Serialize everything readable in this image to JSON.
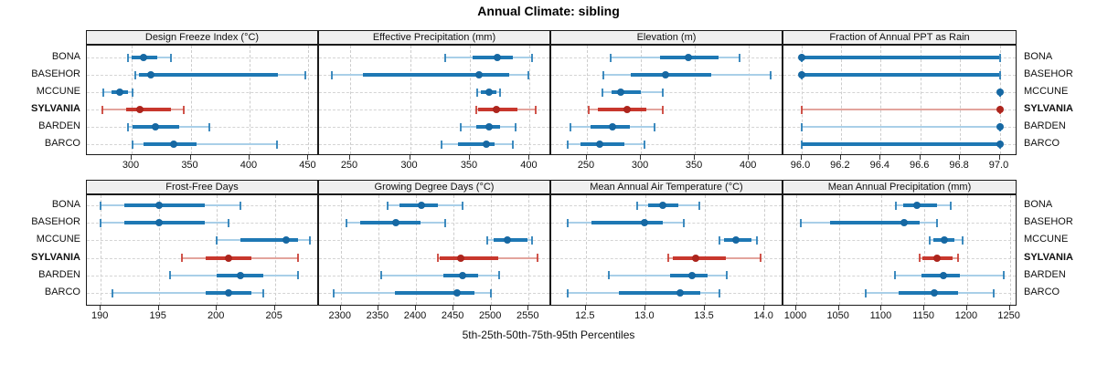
{
  "title": "Annual Climate: sibling",
  "footer": "5th-25th-50th-75th-95th Percentiles",
  "stations": [
    "BONA",
    "BASEHOR",
    "MCCUNE",
    "SYLVANIA",
    "BARDEN",
    "BARCO"
  ],
  "highlight_station": "SYLVANIA",
  "percentile_labels": [
    "5th",
    "25th",
    "50th",
    "75th",
    "95th"
  ],
  "colors": {
    "blue_main": "#1E78B4",
    "blue_light": "#A9CFE8",
    "blue_dot": "#1668A3",
    "red_main": "#C8372D",
    "red_light": "#E3A49D",
    "red_dot": "#AD251D",
    "grid": "#cccccc",
    "panel_border": "#1a1a1a",
    "strip_bg": "#f0f0f0"
  },
  "chart_data": [
    {
      "type": "scatter",
      "subtype": "percentile-interval-dotplot",
      "title": "Design Freeze Index (°C)",
      "row": 0,
      "col": 0,
      "xlim": [
        262,
        459
      ],
      "ticks": [
        300,
        350,
        400,
        450
      ],
      "tick_labels": [
        "300",
        "350",
        "400",
        "450"
      ],
      "grid": true,
      "values": {
        "BONA": [
          297,
          300,
          310,
          322,
          333
        ],
        "BASEHOR": [
          303,
          306,
          316,
          424,
          447
        ],
        "MCCUNE": [
          276,
          283,
          290,
          297,
          301
        ],
        "SYLVANIA": [
          275,
          295,
          307,
          333,
          344
        ],
        "BARDEN": [
          297,
          301,
          320,
          340,
          366
        ],
        "BARCO": [
          301,
          310,
          336,
          355,
          423
        ]
      }
    },
    {
      "type": "scatter",
      "subtype": "percentile-interval-dotplot",
      "title": "Effective Precipitation (mm)",
      "row": 0,
      "col": 1,
      "xlim": [
        224,
        418
      ],
      "ticks": [
        250,
        300,
        350,
        400
      ],
      "tick_labels": [
        "250",
        "300",
        "350",
        "400"
      ],
      "grid": true,
      "values": {
        "BONA": [
          329,
          352,
          373,
          386,
          402
        ],
        "BASEHOR": [
          235,
          261,
          358,
          383,
          399
        ],
        "MCCUNE": [
          356,
          359,
          366,
          372,
          375
        ],
        "SYLVANIA": [
          355,
          357,
          372,
          390,
          405
        ],
        "BARDEN": [
          342,
          355,
          366,
          375,
          388
        ],
        "BARCO": [
          326,
          340,
          364,
          371,
          386
        ]
      }
    },
    {
      "type": "scatter",
      "subtype": "percentile-interval-dotplot",
      "title": "Elevation (m)",
      "row": 0,
      "col": 2,
      "xlim": [
        217,
        432
      ],
      "ticks": [
        250,
        300,
        350,
        400
      ],
      "tick_labels": [
        "250",
        "300",
        "350",
        "400"
      ],
      "grid": true,
      "values": {
        "BONA": [
          272,
          318,
          344,
          372,
          391
        ],
        "BASEHOR": [
          265,
          291,
          323,
          365,
          420
        ],
        "MCCUNE": [
          264,
          273,
          281,
          300,
          320
        ],
        "SYLVANIA": [
          252,
          260,
          287,
          305,
          320
        ],
        "BARDEN": [
          235,
          253,
          274,
          290,
          313
        ],
        "BARCO": [
          232,
          244,
          262,
          285,
          303
        ]
      }
    },
    {
      "type": "scatter",
      "subtype": "percentile-interval-dotplot",
      "title": "Fraction of Annual PPT as Rain",
      "row": 0,
      "col": 3,
      "xlim": [
        95.91,
        97.09
      ],
      "ticks": [
        96.0,
        96.2,
        96.4,
        96.6,
        96.8,
        97.0
      ],
      "tick_labels": [
        "96.0",
        "96.2",
        "96.4",
        "96.6",
        "96.8",
        "97.0"
      ],
      "grid": true,
      "values": {
        "BONA": [
          96,
          96,
          96,
          97,
          97
        ],
        "BASEHOR": [
          96,
          96,
          96,
          97,
          97
        ],
        "MCCUNE": [
          97,
          97,
          97,
          97,
          97
        ],
        "SYLVANIA": [
          96,
          97,
          97,
          97,
          97
        ],
        "BARDEN": [
          96,
          97,
          97,
          97,
          97
        ],
        "BARCO": [
          96,
          96,
          97,
          97,
          97
        ]
      }
    },
    {
      "type": "scatter",
      "subtype": "percentile-interval-dotplot",
      "title": "Frost-Free Days",
      "row": 1,
      "col": 0,
      "xlim": [
        188.8,
        208.8
      ],
      "ticks": [
        190,
        195,
        200,
        205
      ],
      "tick_labels": [
        "190",
        "195",
        "200",
        "205"
      ],
      "grid": true,
      "values": {
        "BONA": [
          190,
          192,
          195,
          199,
          202
        ],
        "BASEHOR": [
          190,
          192,
          195,
          199,
          201
        ],
        "MCCUNE": [
          200,
          202,
          206,
          207,
          208
        ],
        "SYLVANIA": [
          197,
          199,
          201,
          203,
          207
        ],
        "BARDEN": [
          196,
          200,
          202,
          204,
          207
        ],
        "BARCO": [
          191,
          199,
          201,
          203,
          204
        ]
      }
    },
    {
      "type": "scatter",
      "subtype": "percentile-interval-dotplot",
      "title": "Growing Degree Days (°C)",
      "row": 1,
      "col": 1,
      "xlim": [
        2271,
        2580
      ],
      "ticks": [
        2300,
        2350,
        2400,
        2450,
        2500,
        2550
      ],
      "tick_labels": [
        "2300",
        "2350",
        "2400",
        "2450",
        "2500",
        "2550"
      ],
      "grid": true,
      "values": {
        "BONA": [
          2362,
          2378,
          2407,
          2429,
          2462
        ],
        "BASEHOR": [
          2307,
          2326,
          2373,
          2406,
          2439
        ],
        "MCCUNE": [
          2495,
          2503,
          2522,
          2548,
          2554
        ],
        "SYLVANIA": [
          2429,
          2432,
          2460,
          2509,
          2562
        ],
        "BARDEN": [
          2354,
          2436,
          2462,
          2483,
          2511
        ],
        "BARCO": [
          2291,
          2372,
          2455,
          2478,
          2500
        ]
      }
    },
    {
      "type": "scatter",
      "subtype": "percentile-interval-dotplot",
      "title": "Mean Annual Air Temperature (°C)",
      "row": 1,
      "col": 2,
      "xlim": [
        12.21,
        14.16
      ],
      "ticks": [
        12.5,
        13.0,
        13.5,
        14.0
      ],
      "tick_labels": [
        "12.5",
        "13.0",
        "13.5",
        "14.0"
      ],
      "grid": true,
      "values": {
        "BONA": [
          12.93,
          13.02,
          13.15,
          13.28,
          13.45
        ],
        "BASEHOR": [
          12.35,
          12.55,
          12.99,
          13.15,
          13.32
        ],
        "MCCUNE": [
          13.62,
          13.66,
          13.76,
          13.89,
          13.94
        ],
        "SYLVANIA": [
          13.19,
          13.23,
          13.42,
          13.68,
          13.97
        ],
        "BARDEN": [
          12.69,
          13.21,
          13.39,
          13.52,
          13.68
        ],
        "BARCO": [
          12.35,
          12.78,
          13.29,
          13.46,
          13.62
        ]
      }
    },
    {
      "type": "scatter",
      "subtype": "percentile-interval-dotplot",
      "title": "Mean Annual Precipitation (mm)",
      "row": 1,
      "col": 3,
      "xlim": [
        985,
        1259
      ],
      "ticks": [
        1000,
        1050,
        1100,
        1150,
        1200,
        1250
      ],
      "tick_labels": [
        "1000",
        "1050",
        "1100",
        "1150",
        "1200",
        "1250"
      ],
      "grid": true,
      "values": {
        "BONA": [
          1117,
          1125,
          1141,
          1165,
          1181
        ],
        "BASEHOR": [
          1005,
          1040,
          1126,
          1145,
          1165
        ],
        "MCCUNE": [
          1156,
          1161,
          1173,
          1185,
          1195
        ],
        "SYLVANIA": [
          1144,
          1148,
          1165,
          1183,
          1189
        ],
        "BARDEN": [
          1115,
          1147,
          1172,
          1192,
          1243
        ],
        "BARCO": [
          1081,
          1120,
          1162,
          1190,
          1231
        ]
      }
    }
  ]
}
